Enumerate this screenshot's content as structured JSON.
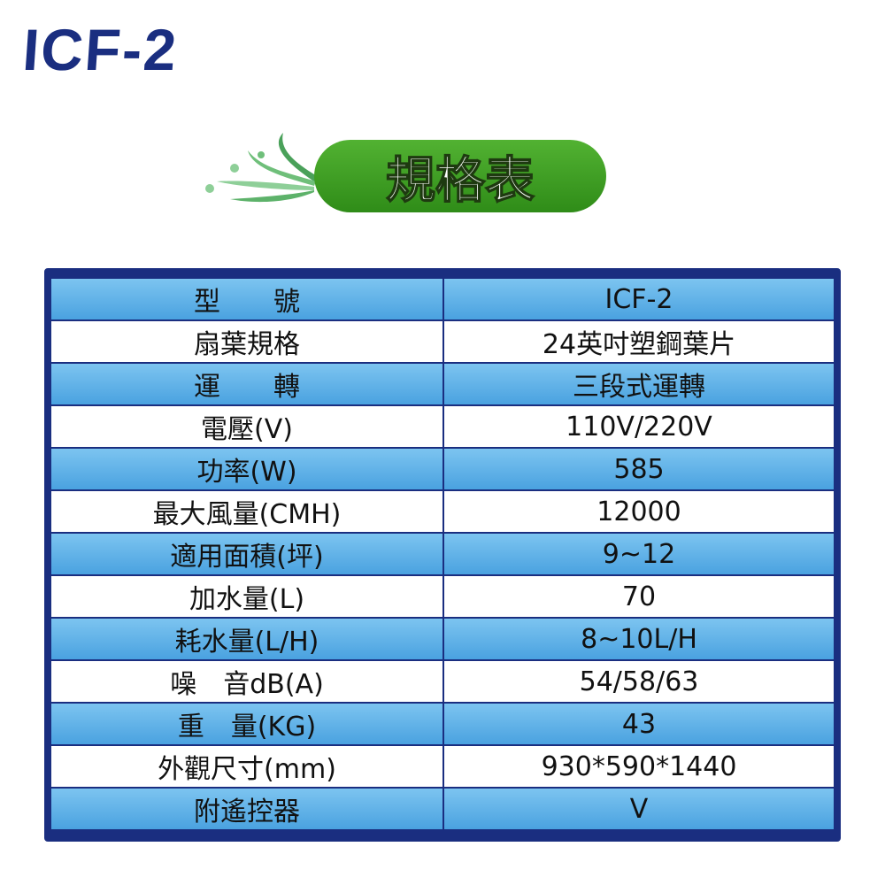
{
  "header": {
    "title": "ICF-2",
    "badge": "規格表"
  },
  "table": {
    "rows": [
      [
        "型　　號",
        "ICF-2"
      ],
      [
        "扇葉規格",
        "24英吋塑鋼葉片"
      ],
      [
        "運　　轉",
        "三段式運轉"
      ],
      [
        "電壓(V)",
        "110V/220V"
      ],
      [
        "功率(W)",
        "585"
      ],
      [
        "最大風量(CMH)",
        "12000"
      ],
      [
        "適用面積(坪)",
        "9~12"
      ],
      [
        "加水量(L)",
        "70"
      ],
      [
        "耗水量(L/H)",
        "8~10L/H"
      ],
      [
        "噪　音dB(A)",
        "54/58/63"
      ],
      [
        "重　量(KG)",
        "43"
      ],
      [
        "外觀尺寸(mm)",
        "930*590*1440"
      ],
      [
        "附遙控器",
        "V"
      ]
    ]
  }
}
